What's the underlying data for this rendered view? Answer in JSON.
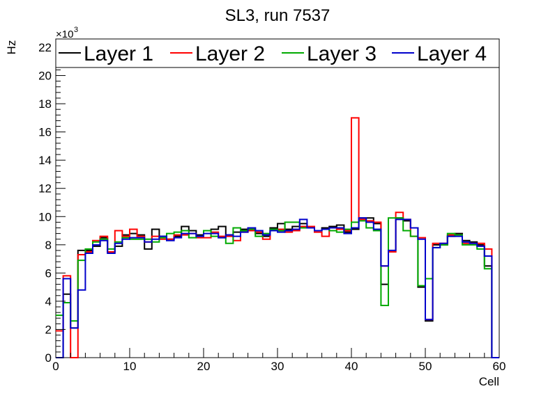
{
  "chart_data": {
    "type": "step",
    "title": "SL3, run 7537",
    "xlabel": "Cell",
    "ylabel": "Hz",
    "y_exponent_label": "×10",
    "y_exponent_power": "3",
    "xlim": [
      0,
      60
    ],
    "ylim": [
      0,
      22
    ],
    "x_ticks": [
      0,
      10,
      20,
      30,
      40,
      50,
      60
    ],
    "y_ticks": [
      0,
      2,
      4,
      6,
      8,
      10,
      12,
      14,
      16,
      18,
      20,
      22
    ],
    "bin_edges_start": 0,
    "bin_width": 1,
    "series": [
      {
        "name": "Layer 1",
        "color": "#000000",
        "values": [
          0,
          4.5,
          2.1,
          7.6,
          7.6,
          7.9,
          8.5,
          7.5,
          7.9,
          8.7,
          8.8,
          8.7,
          7.7,
          9.1,
          8.6,
          8.4,
          8.6,
          9.3,
          9.0,
          8.7,
          9.0,
          9.1,
          9.3,
          8.7,
          8.9,
          9.1,
          9.2,
          8.8,
          8.6,
          9.2,
          9.5,
          9.1,
          9.3,
          9.5,
          9.2,
          9.0,
          9.2,
          9.3,
          9.4,
          8.9,
          9.1,
          9.9,
          9.9,
          9.5,
          5.2,
          7.5,
          9.9,
          9.7,
          9.2,
          5.0,
          2.6,
          8.0,
          8.0,
          8.6,
          8.8,
          8.3,
          8.2,
          8.0,
          6.5,
          0
        ],
        "y_label": ""
      },
      {
        "name": "Layer 2",
        "color": "#ff0000",
        "values": [
          1.9,
          5.8,
          0,
          7.3,
          7.5,
          8.3,
          8.6,
          7.5,
          9.0,
          8.6,
          9.1,
          8.6,
          8.2,
          8.6,
          8.4,
          8.4,
          8.7,
          8.7,
          8.8,
          8.5,
          8.5,
          8.9,
          8.6,
          8.6,
          8.3,
          8.9,
          9.0,
          8.9,
          8.4,
          9.1,
          9.1,
          8.9,
          9.0,
          9.3,
          9.3,
          8.9,
          8.6,
          9.2,
          9.1,
          9.0,
          17.0,
          9.8,
          9.7,
          9.6,
          6.5,
          7.5,
          10.3,
          9.8,
          8.6,
          8.5,
          2.7,
          8.1,
          8.1,
          8.7,
          8.7,
          8.1,
          8.1,
          8.1,
          7.7,
          0
        ],
        "y_label": ""
      },
      {
        "name": "Layer 3",
        "color": "#00aa00",
        "values": [
          3.0,
          3.9,
          2.6,
          6.9,
          7.7,
          8.2,
          8.4,
          7.7,
          8.2,
          8.5,
          8.4,
          8.4,
          8.4,
          8.2,
          8.5,
          8.8,
          8.9,
          9.0,
          8.5,
          8.6,
          9.0,
          8.6,
          8.5,
          8.1,
          9.2,
          9.0,
          9.1,
          8.6,
          8.8,
          9.1,
          9.0,
          9.6,
          9.6,
          9.2,
          9.2,
          9.0,
          9.1,
          9.0,
          8.9,
          9.1,
          9.6,
          9.7,
          9.2,
          9.0,
          3.7,
          9.9,
          9.9,
          9.0,
          8.6,
          5.1,
          5.6,
          7.8,
          8.0,
          8.8,
          8.7,
          8.0,
          8.0,
          7.7,
          6.3,
          0
        ],
        "y_label": ""
      },
      {
        "name": "Layer 4",
        "color": "#0000cc",
        "values": [
          0,
          5.6,
          2.1,
          4.8,
          7.4,
          8.0,
          8.3,
          7.4,
          8.1,
          8.4,
          8.5,
          8.5,
          8.2,
          8.4,
          8.6,
          8.3,
          8.5,
          8.8,
          8.8,
          8.6,
          8.8,
          8.8,
          8.5,
          8.7,
          8.6,
          8.9,
          9.2,
          9.0,
          8.7,
          9.0,
          8.9,
          9.0,
          9.1,
          9.8,
          9.2,
          9.0,
          9.1,
          9.2,
          9.2,
          8.8,
          9.2,
          9.9,
          9.6,
          9.1,
          6.5,
          7.6,
          9.8,
          9.8,
          9.2,
          8.4,
          2.7,
          7.8,
          8.1,
          8.6,
          8.6,
          8.2,
          8.1,
          7.9,
          7.2,
          0
        ],
        "y_label": ""
      }
    ],
    "legend_position": "top"
  }
}
